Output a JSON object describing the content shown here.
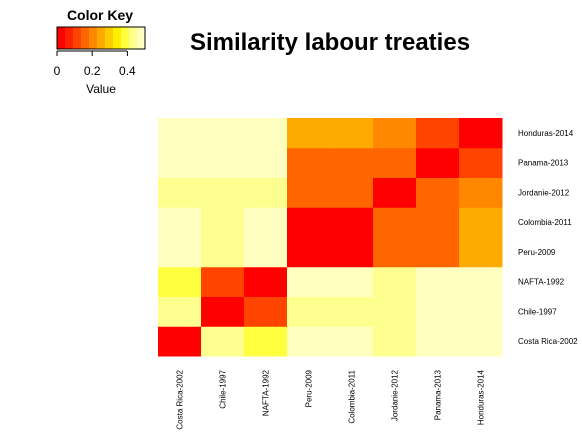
{
  "chart_data": {
    "type": "heatmap",
    "title": "Similarity labour treaties",
    "color_key": {
      "title": "Color Key",
      "xlabel": "Value",
      "ticks": [
        "0",
        "0.2",
        "0.4"
      ],
      "range": [
        0,
        0.5
      ],
      "colors": [
        "#FF0000",
        "#FF2200",
        "#FF4400",
        "#FF6600",
        "#FF8800",
        "#FFAA00",
        "#FFCC00",
        "#FFEE00",
        "#FFFF40",
        "#FFFF90",
        "#FFFFC0"
      ]
    },
    "rows": [
      "Costa Rica-2002",
      "Chile-1997",
      "NAFTA-1992",
      "Peru-2009",
      "Colombia-2011",
      "Jordanie-2012",
      "Panama-2013",
      "Honduras-2014"
    ],
    "columns": [
      "Costa Rica-2002",
      "Chile-1997",
      "NAFTA-1992",
      "Peru-2009",
      "Colombia-2011",
      "Jordanie-2012",
      "Panama-2013",
      "Honduras-2014"
    ],
    "values": [
      [
        0.0,
        0.45,
        0.4,
        0.5,
        0.5,
        0.42,
        0.5,
        0.5
      ],
      [
        0.45,
        0.0,
        0.1,
        0.42,
        0.42,
        0.42,
        0.5,
        0.5
      ],
      [
        0.4,
        0.1,
        0.0,
        0.5,
        0.5,
        0.42,
        0.5,
        0.5
      ],
      [
        0.5,
        0.42,
        0.5,
        0.0,
        0.0,
        0.18,
        0.18,
        0.27
      ],
      [
        0.5,
        0.42,
        0.5,
        0.0,
        0.0,
        0.18,
        0.18,
        0.27
      ],
      [
        0.42,
        0.42,
        0.42,
        0.18,
        0.18,
        0.0,
        0.14,
        0.22
      ],
      [
        0.5,
        0.5,
        0.5,
        0.18,
        0.18,
        0.14,
        0.0,
        0.12
      ],
      [
        0.5,
        0.5,
        0.5,
        0.27,
        0.27,
        0.22,
        0.12,
        0.0
      ]
    ]
  }
}
